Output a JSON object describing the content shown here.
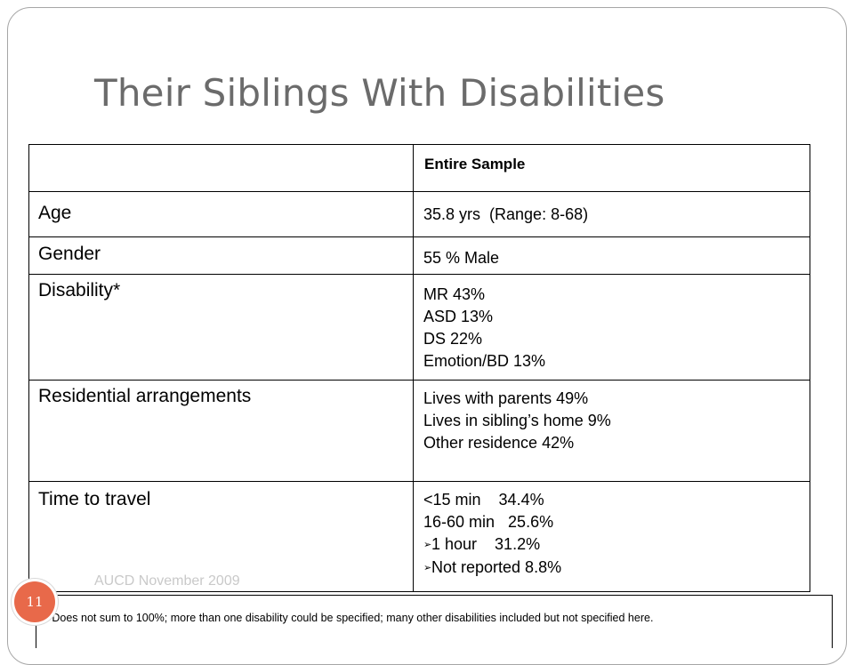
{
  "slide": {
    "title": "Their Siblings With Disabilities",
    "footer_text": "AUCD November 2009",
    "page_number": "11",
    "footnote": "* Does not sum to 100%; more than one disability could be specified; many other disabilities included but not specified here."
  },
  "table": {
    "header": {
      "blank": "",
      "column": "Entire Sample"
    },
    "rows": [
      {
        "label": "Age",
        "values": [
          "35.8 yrs  (Range: 8-68)"
        ]
      },
      {
        "label": "Gender",
        "values": [
          "55 % Male"
        ]
      },
      {
        "label": "Disability*",
        "values": [
          "MR 43%",
          "ASD 13%",
          "DS 22%",
          "Emotion/BD 13%"
        ]
      },
      {
        "label": "Residential arrangements",
        "values": [
          "Lives with parents 49%",
          "Lives in sibling’s home 9%",
          "Other residence 42%"
        ]
      },
      {
        "label": "Time to travel",
        "values": [
          "<15 min    34.4%",
          "16-60 min   25.6%",
          "1 hour    31.2%",
          "Not reported 8.8%"
        ],
        "bullets": [
          "",
          "",
          "➢",
          "➢"
        ]
      }
    ]
  },
  "colors": {
    "title": "#6b6b6b",
    "badge": "#e8694a",
    "footer": "#c9c9c9"
  }
}
